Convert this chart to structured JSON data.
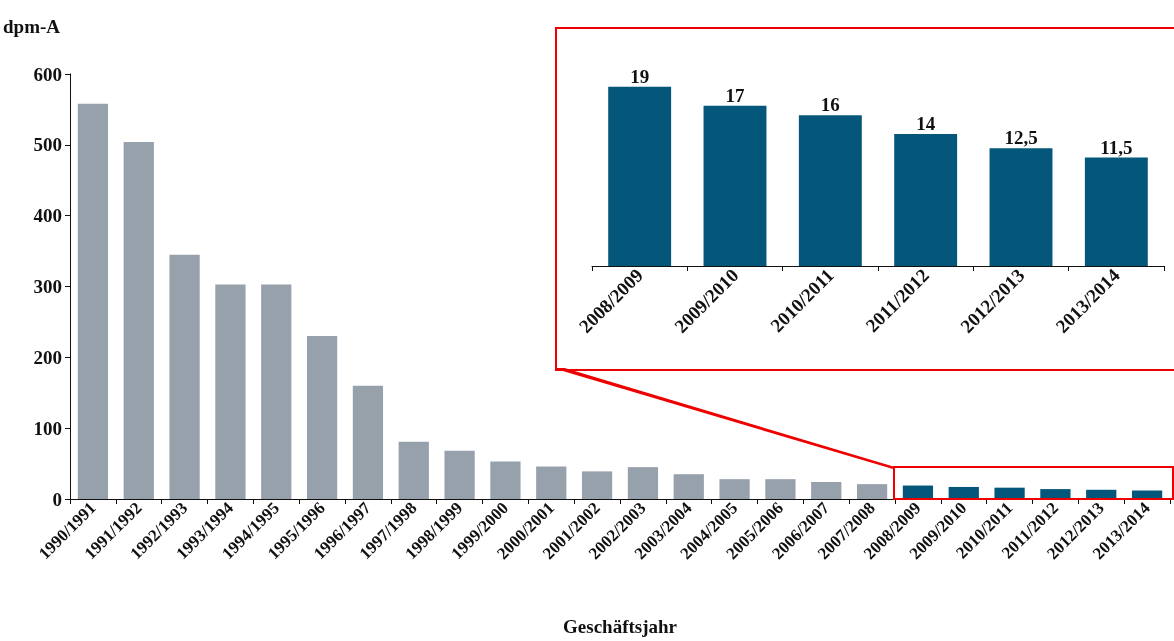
{
  "chart_data": [
    {
      "type": "bar",
      "xlabel": "Geschäftsjahr",
      "ylabel": "dpm-A",
      "categories": [
        "1990/1991",
        "1991/1992",
        "1992/1993",
        "1993/1994",
        "1994/1995",
        "1995/1996",
        "1996/1997",
        "1997/1998",
        "1998/1999",
        "1999/2000",
        "2000/2001",
        "2001/2002",
        "2002/2003",
        "2003/2004",
        "2004/2005",
        "2005/2006",
        "2006/2007",
        "2007/2008",
        "2008/2009",
        "2009/2010",
        "2010/2011",
        "2011/2012",
        "2012/2013",
        "2013/2014"
      ],
      "values": [
        558,
        504,
        345,
        303,
        303,
        230,
        160,
        81,
        68,
        53,
        46,
        39,
        45,
        35,
        28,
        28,
        24,
        21,
        19,
        17,
        16,
        14,
        13,
        12
      ],
      "colors": [
        "#97a1ab",
        "#97a1ab",
        "#97a1ab",
        "#97a1ab",
        "#97a1ab",
        "#97a1ab",
        "#97a1ab",
        "#97a1ab",
        "#97a1ab",
        "#97a1ab",
        "#97a1ab",
        "#97a1ab",
        "#97a1ab",
        "#97a1ab",
        "#97a1ab",
        "#97a1ab",
        "#97a1ab",
        "#97a1ab",
        "#04567a",
        "#04567a",
        "#04567a",
        "#04567a",
        "#04567a",
        "#04567a"
      ],
      "ylim": [
        0,
        600
      ],
      "yticks": [
        0,
        100,
        200,
        300,
        400,
        500,
        600
      ],
      "grid": false
    },
    {
      "type": "bar",
      "categories": [
        "2008/2009",
        "2009/2010",
        "2010/2011",
        "2011/2012",
        "2012/2013",
        "2013/2014"
      ],
      "values": [
        19,
        17,
        16,
        14,
        12.5,
        11.5
      ],
      "value_labels": [
        "19",
        "17",
        "16",
        "14",
        "12,5",
        "11,5"
      ],
      "color": "#04567a",
      "grid": false
    }
  ]
}
